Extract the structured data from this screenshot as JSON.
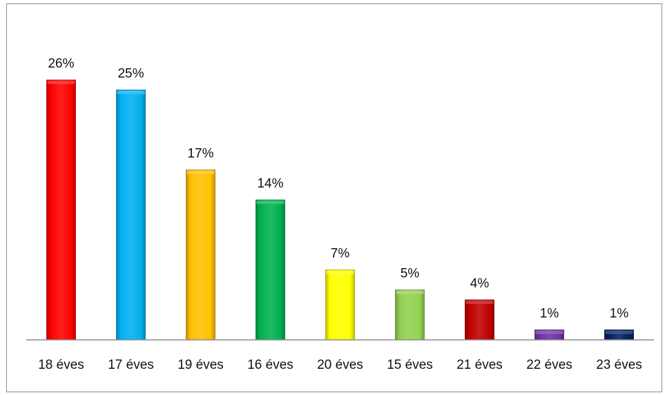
{
  "chart_data": {
    "type": "bar",
    "title": "",
    "xlabel": "",
    "ylabel": "",
    "categories": [
      "18 éves",
      "17 éves",
      "19 éves",
      "16 éves",
      "20 éves",
      "15 éves",
      "21 éves",
      "22 éves",
      "23 éves"
    ],
    "values": [
      26,
      25,
      17,
      14,
      7,
      5,
      4,
      1,
      1
    ],
    "data_labels": [
      "26%",
      "25%",
      "17%",
      "14%",
      "7%",
      "5%",
      "4%",
      "1%",
      "1%"
    ],
    "colors": [
      "#ff0000",
      "#00b0f0",
      "#ffc000",
      "#00b050",
      "#ffff00",
      "#92d050",
      "#c00000",
      "#7030a0",
      "#002060"
    ],
    "ylim": [
      0,
      28
    ],
    "grid": false,
    "legend": "none"
  }
}
